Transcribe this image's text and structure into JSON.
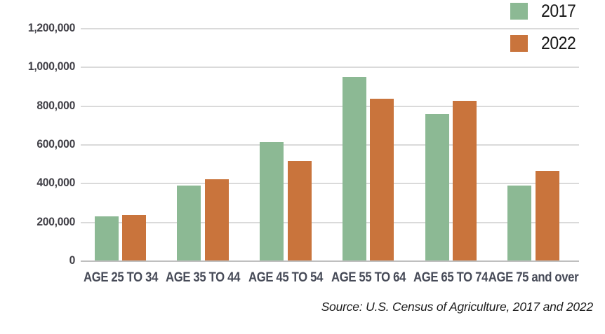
{
  "chart_data": {
    "type": "bar",
    "title": "",
    "xlabel": "",
    "ylabel": "",
    "categories": [
      "AGE 25 TO 34",
      "AGE 35 TO 44",
      "AGE 45 TO 54",
      "AGE 55 TO 64",
      "AGE 65 TO 74",
      "AGE 75 and over"
    ],
    "series": [
      {
        "name": "2017",
        "color": "#8cb994",
        "values": [
          230000,
          390000,
          615000,
          950000,
          760000,
          392000
        ]
      },
      {
        "name": "2022",
        "color": "#c9743c",
        "values": [
          238000,
          423000,
          517000,
          838000,
          828000,
          467000
        ]
      }
    ],
    "ylim": [
      0,
      1200000
    ],
    "ytick_values": [
      0,
      200000,
      400000,
      600000,
      800000,
      1000000,
      1200000
    ],
    "ytick_labels": [
      "0",
      "200,000",
      "400,000",
      "600,000",
      "800,000",
      "1,000,000",
      "1,200,000"
    ],
    "grid": "horizontal",
    "legend_position": "top-right"
  },
  "source_note": "Source: U.S. Census of Agriculture, 2017 and 2022",
  "colors": {
    "gridline": "#dadada",
    "axis_line": "#bfbfbf",
    "axis_text": "#464a57",
    "legend_text": "#161616"
  }
}
